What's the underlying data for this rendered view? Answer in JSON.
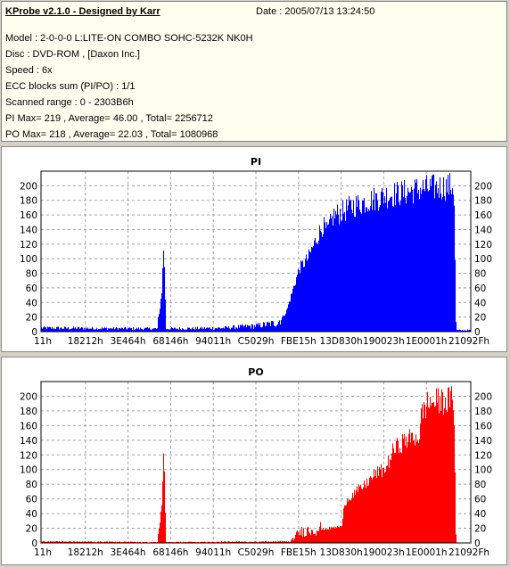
{
  "info": {
    "title": "KProbe v2.1.0 - Designed by Karr",
    "date": "Date : 2005/07/13 13:24:50",
    "lines": [
      "Model : 2-0-0-0 L:LITE-ON COMBO SOHC-5232K NK0H",
      "Disc : DVD-ROM ,  [Daxon Inc.]",
      "Speed : 6x",
      "ECC blocks sum (PI/PO) : 1/1",
      "Scanned range : 0 - 2303B6h",
      "PI Max= 219 , Average= 46.00 , Total= 2256712",
      "PO Max= 218 , Average= 22.03 , Total= 1080968"
    ]
  },
  "chart_data": [
    {
      "type": "bar",
      "title": "PI",
      "color": "#0000ff",
      "ylim": [
        0,
        220
      ],
      "yticks": [
        0,
        20,
        40,
        60,
        80,
        100,
        120,
        140,
        160,
        180,
        200
      ],
      "xticks": [
        "11h",
        "18212h",
        "3E464h",
        "68146h",
        "94011h",
        "C5029h",
        "FBE15h",
        "13D830h",
        "190023h",
        "1E0001h",
        "21092Fh"
      ],
      "grid": true,
      "profile": [
        [
          0,
          5
        ],
        [
          0.27,
          4
        ],
        [
          0.28,
          60
        ],
        [
          0.285,
          135
        ],
        [
          0.29,
          4
        ],
        [
          0.42,
          5
        ],
        [
          0.5,
          8
        ],
        [
          0.55,
          12
        ],
        [
          0.57,
          30
        ],
        [
          0.6,
          95
        ],
        [
          0.62,
          110
        ],
        [
          0.64,
          140
        ],
        [
          0.655,
          160
        ],
        [
          0.665,
          150
        ],
        [
          0.68,
          175
        ],
        [
          0.7,
          180
        ],
        [
          0.72,
          188
        ],
        [
          0.75,
          195
        ],
        [
          0.8,
          205
        ],
        [
          0.85,
          210
        ],
        [
          0.88,
          215
        ],
        [
          0.95,
          219
        ],
        [
          0.96,
          219
        ],
        [
          0.965,
          2
        ],
        [
          1,
          2
        ]
      ]
    },
    {
      "type": "bar",
      "title": "PO",
      "color": "#ff0000",
      "ylim": [
        0,
        220
      ],
      "yticks": [
        0,
        20,
        40,
        60,
        80,
        100,
        120,
        140,
        160,
        180,
        200
      ],
      "xticks": [
        "11h",
        "18212h",
        "3E464h",
        "68146h",
        "94011h",
        "C5029h",
        "FBE15h",
        "13D830h",
        "190023h",
        "1E0001h",
        "21092Fh"
      ],
      "grid": true,
      "profile": [
        [
          0,
          2
        ],
        [
          0.27,
          1
        ],
        [
          0.28,
          55
        ],
        [
          0.285,
          135
        ],
        [
          0.29,
          1
        ],
        [
          0.58,
          2
        ],
        [
          0.6,
          15
        ],
        [
          0.65,
          20
        ],
        [
          0.7,
          25
        ],
        [
          0.705,
          60
        ],
        [
          0.72,
          70
        ],
        [
          0.75,
          85
        ],
        [
          0.78,
          105
        ],
        [
          0.8,
          110
        ],
        [
          0.82,
          140
        ],
        [
          0.85,
          155
        ],
        [
          0.88,
          160
        ],
        [
          0.885,
          195
        ],
        [
          0.9,
          210
        ],
        [
          0.96,
          215
        ],
        [
          0.965,
          0
        ],
        [
          1,
          0
        ]
      ]
    }
  ]
}
